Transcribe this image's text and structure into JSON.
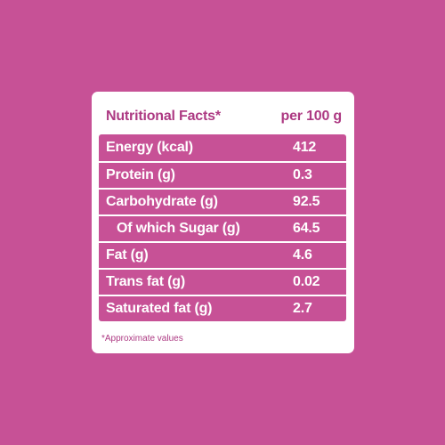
{
  "header": {
    "title": "Nutritional Facts*",
    "per": "per 100 g"
  },
  "rows": [
    {
      "label": "Energy (kcal)",
      "value": "412"
    },
    {
      "label": "Protein (g)",
      "value": "0.3"
    },
    {
      "label": "Carbohydrate (g)",
      "value": "92.5"
    },
    {
      "label": "Of which Sugar (g)",
      "value": "64.5"
    },
    {
      "label": "Fat (g)",
      "value": "4.6"
    },
    {
      "label": "Trans fat (g)",
      "value": "0.02"
    },
    {
      "label": "Saturated fat (g)",
      "value": "2.7"
    }
  ],
  "footnote": "*Approximate values",
  "colors": {
    "background": "#c75196",
    "panel": "#ffffff",
    "accent_text": "#ad3a83"
  }
}
